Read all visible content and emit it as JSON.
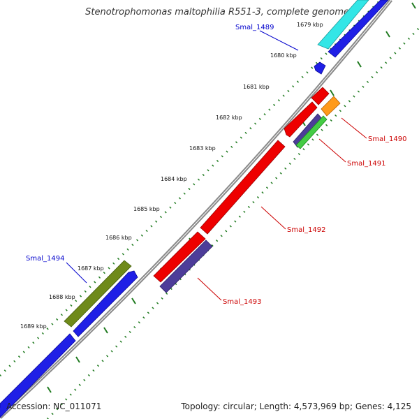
{
  "title": "Stenotrophomonas maltophilia R551-3, complete genome",
  "footer": {
    "accession": "Accession: NC_011071",
    "summary": "Topology: circular; Length: 4,573,969 bp; Genes: 4,125"
  },
  "colors": {
    "backbone": "#8a8a8a",
    "ticks": "#1f7a1f",
    "forward_label": "#0000cc",
    "reverse_label": "#cc0000"
  },
  "scale": {
    "unit": "kbp",
    "ticks": [
      "1679 kbp",
      "1680 kbp",
      "1681 kbp",
      "1682 kbp",
      "1683 kbp",
      "1684 kbp",
      "1685 kbp",
      "1686 kbp",
      "1687 kbp",
      "1688 kbp",
      "1689 kbp"
    ]
  },
  "gene_labels": {
    "Smal_1489": "Smal_1489",
    "Smal_1490": "Smal_1490",
    "Smal_1491": "Smal_1491",
    "Smal_1492": "Smal_1492",
    "Smal_1493": "Smal_1493",
    "Smal_1494": "Smal_1494"
  },
  "features": [
    {
      "id": "Smal_1489",
      "strand": "forward",
      "color": "#1f1fe6",
      "name": "Smal_1489"
    },
    {
      "id": "Smal_1489_cds",
      "strand": "forward",
      "color": "#33e6e6",
      "name": ""
    },
    {
      "id": "Smal_1490",
      "strand": "reverse",
      "color": "#ff9a1a",
      "name": "Smal_1490"
    },
    {
      "id": "Smal_1491",
      "strand": "reverse",
      "color": "#44cc44",
      "name": "Smal_1491"
    },
    {
      "id": "Smal_1492",
      "strand": "reverse",
      "color": "#ee0000",
      "name": "Smal_1492"
    },
    {
      "id": "Smal_1493",
      "strand": "reverse",
      "color": "#4d3d99",
      "name": "Smal_1493"
    },
    {
      "id": "Smal_1494",
      "strand": "forward",
      "color": "#6f8a1a",
      "name": "Smal_1494"
    }
  ]
}
